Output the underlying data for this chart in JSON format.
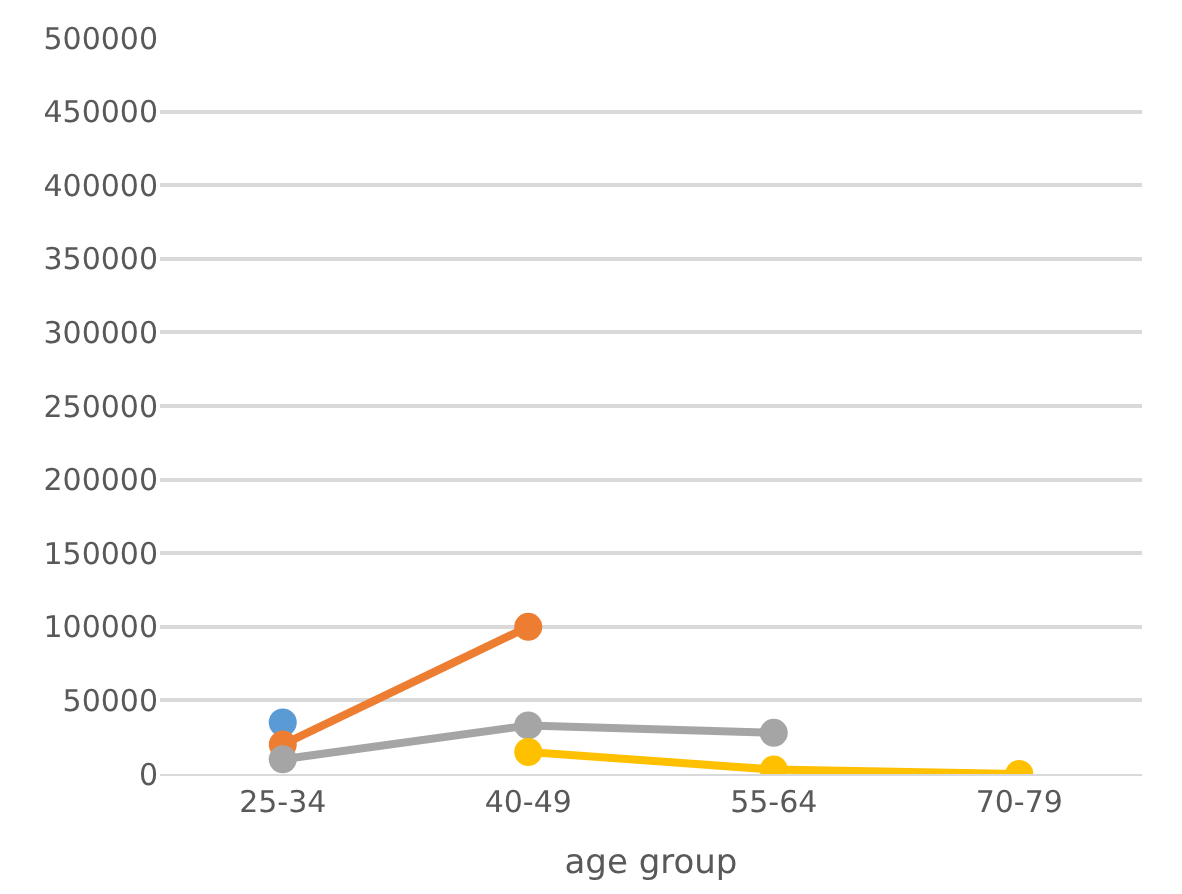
{
  "chart_data": {
    "type": "line",
    "xlabel": "age group",
    "categories": [
      "25-34",
      "40-49",
      "55-64",
      "70-79"
    ],
    "series": [
      {
        "color": "#5b9bd5",
        "values": [
          35000,
          null,
          null,
          null
        ]
      },
      {
        "color": "#ed7d31",
        "values": [
          20000,
          100000,
          null,
          null
        ]
      },
      {
        "color": "#a5a5a5",
        "values": [
          10000,
          33000,
          28000,
          null
        ]
      },
      {
        "color": "#ffc000",
        "values": [
          null,
          15000,
          3000,
          0
        ]
      }
    ],
    "ylim": [
      0,
      500000
    ],
    "yticks": [
      0,
      50000,
      100000,
      150000,
      200000,
      250000,
      300000,
      350000,
      400000,
      450000,
      500000
    ],
    "grid": "y",
    "marker": "circle",
    "line_style": "solid"
  }
}
